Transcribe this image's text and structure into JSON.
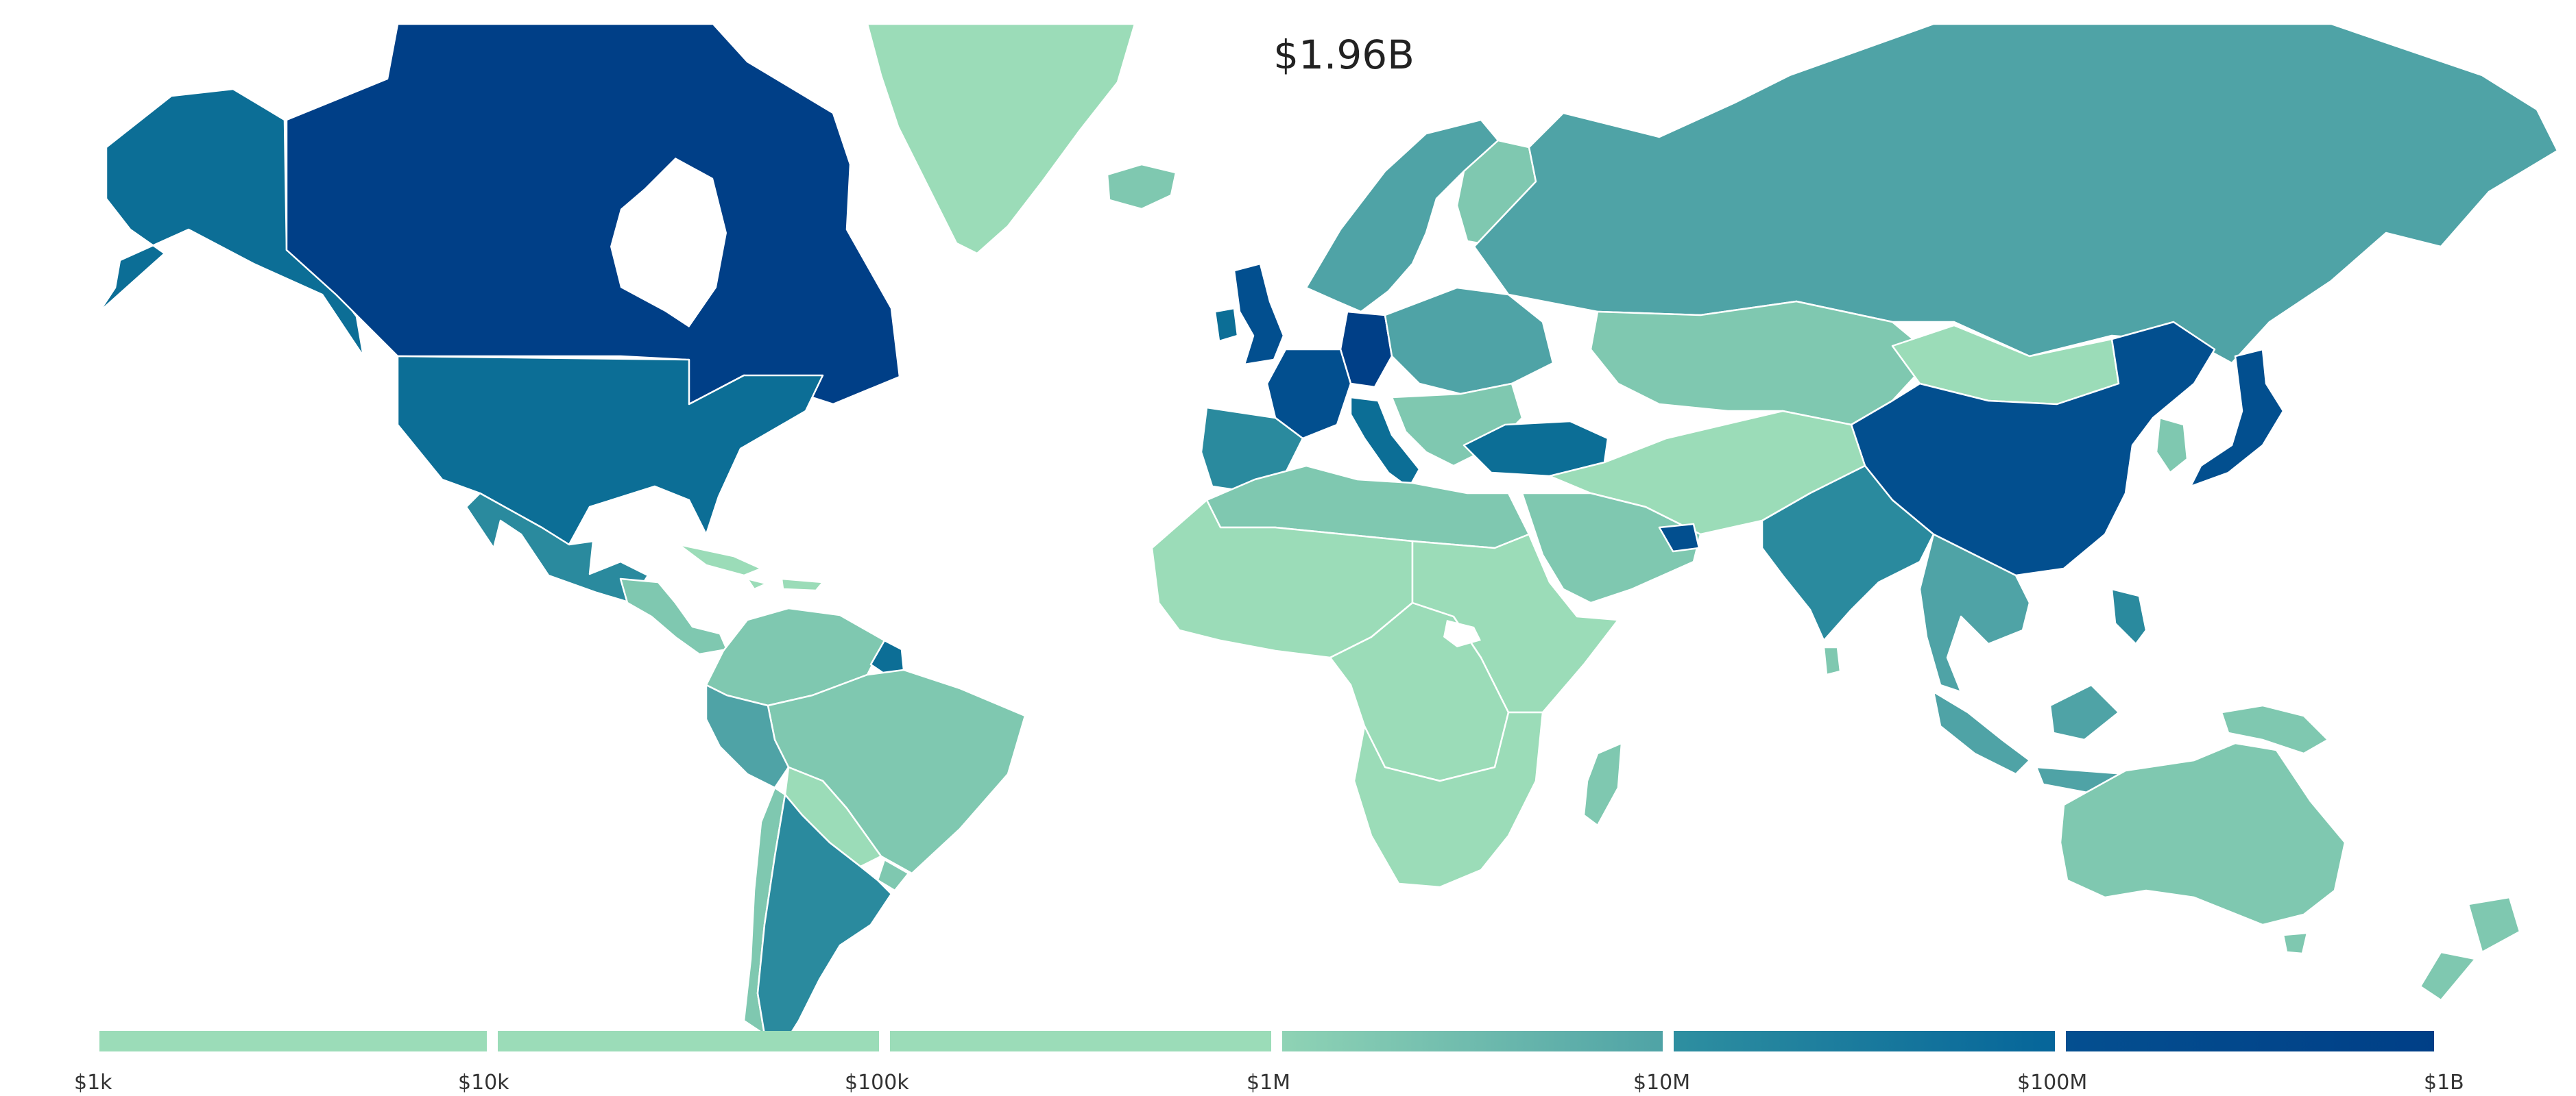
{
  "map": {
    "total_value": "$1.96B",
    "level_colors": {
      "1": "#9bdcb8",
      "2": "#7fc8b0",
      "3": "#4fa3a6",
      "4": "#2a8a9e",
      "5": "#0c6e96",
      "6": "#024f8f",
      "7": "#003f87"
    },
    "regions": [
      {
        "name": "greenland",
        "level": 1
      },
      {
        "name": "iceland",
        "level": 2
      },
      {
        "name": "alaska",
        "level": 5
      },
      {
        "name": "canada",
        "level": 7
      },
      {
        "name": "united-states",
        "level": 5
      },
      {
        "name": "mexico",
        "level": 4
      },
      {
        "name": "central-america",
        "level": 2
      },
      {
        "name": "caribbean",
        "level": 1
      },
      {
        "name": "northern-south-america",
        "level": 2
      },
      {
        "name": "guyana-suriname",
        "level": 5
      },
      {
        "name": "peru",
        "level": 3
      },
      {
        "name": "brazil",
        "level": 2
      },
      {
        "name": "bolivia-paraguay",
        "level": 1
      },
      {
        "name": "chile",
        "level": 2
      },
      {
        "name": "argentina",
        "level": 4
      },
      {
        "name": "uruguay",
        "level": 2
      },
      {
        "name": "scandinavia",
        "level": 3
      },
      {
        "name": "finland",
        "level": 2
      },
      {
        "name": "united-kingdom",
        "level": 6
      },
      {
        "name": "ireland",
        "level": 5
      },
      {
        "name": "france",
        "level": 6
      },
      {
        "name": "iberia",
        "level": 4
      },
      {
        "name": "germany",
        "level": 7
      },
      {
        "name": "italy",
        "level": 5
      },
      {
        "name": "eastern-europe",
        "level": 3
      },
      {
        "name": "balkans",
        "level": 2
      },
      {
        "name": "turkey",
        "level": 5
      },
      {
        "name": "russia",
        "level": 3
      },
      {
        "name": "kazakhstan-central-asia",
        "level": 2
      },
      {
        "name": "mongolia",
        "level": 1
      },
      {
        "name": "middle-east",
        "level": 1
      },
      {
        "name": "arabian-peninsula",
        "level": 2
      },
      {
        "name": "uae",
        "level": 6
      },
      {
        "name": "north-africa",
        "level": 2
      },
      {
        "name": "sahel-west-africa",
        "level": 1
      },
      {
        "name": "central-africa",
        "level": 1
      },
      {
        "name": "east-africa",
        "level": 1
      },
      {
        "name": "southern-africa",
        "level": 1
      },
      {
        "name": "madagascar",
        "level": 2
      },
      {
        "name": "india",
        "level": 4
      },
      {
        "name": "sri-lanka",
        "level": 2
      },
      {
        "name": "china",
        "level": 6
      },
      {
        "name": "korea",
        "level": 2
      },
      {
        "name": "japan",
        "level": 6
      },
      {
        "name": "southeast-asia",
        "level": 3
      },
      {
        "name": "philippines",
        "level": 4
      },
      {
        "name": "indonesia",
        "level": 3
      },
      {
        "name": "papua",
        "level": 2
      },
      {
        "name": "australia",
        "level": 2
      },
      {
        "name": "new-zealand",
        "level": 2
      }
    ]
  },
  "legend": {
    "labels": [
      "$1k",
      "$10k",
      "$100k",
      "$1M",
      "$10M",
      "$100M",
      "$1B"
    ],
    "segments": [
      {
        "from": "#9bdcb8",
        "to": "#9bdcb8"
      },
      {
        "from": "#9bdcb8",
        "to": "#9bdcb8"
      },
      {
        "from": "#9bdcb8",
        "to": "#9bdcb8"
      },
      {
        "from": "#8fd3b5",
        "to": "#4fa3a6"
      },
      {
        "from": "#2e8fa0",
        "to": "#05659a"
      },
      {
        "from": "#044f90",
        "to": "#003f87"
      }
    ]
  }
}
